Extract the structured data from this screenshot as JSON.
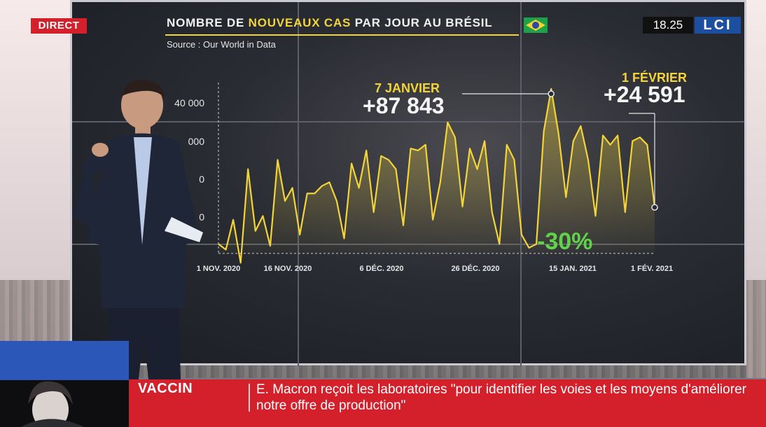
{
  "broadcast": {
    "live_label": "DIRECT",
    "time": "18.25",
    "channel_logo": "LCI",
    "colors": {
      "live_red": "#d3202b",
      "logo_blue": "#1d4fa0"
    }
  },
  "chart": {
    "title_prefix": "NOMBRE DE",
    "title_highlight": "NOUVEAUX CAS",
    "title_suffix": "PAR JOUR AU BRÉSIL",
    "source": "Source : Our World in Data",
    "flag_icon": "brazil-flag-icon",
    "annotation_peak": {
      "date": "7 JANVIER",
      "value": "+87 843"
    },
    "annotation_last": {
      "date": "1 FÉVRIER",
      "value": "+24 591"
    },
    "change": "-30%",
    "colors": {
      "line": "#f3d43a",
      "change": "#5fd34a"
    }
  },
  "chart_data": {
    "type": "area",
    "title": "NOMBRE DE NOUVEAUX CAS PAR JOUR AU BRÉSIL",
    "xlabel": "",
    "ylabel": "",
    "ylim": [
      0,
      80000
    ],
    "yticks": [
      "0",
      "",
      "",
      "40 000"
    ],
    "yticks_visible": [
      "0",
      "0",
      "000",
      "40 000"
    ],
    "xticks": [
      "1 NOV. 2020",
      "16 NOV. 2020",
      "6 DÉC. 2020",
      "26 DÉC. 2020",
      "15 JAN. 2021",
      "1 FÉV. 2021"
    ],
    "series": [
      {
        "values": [
          5000,
          2000,
          18000,
          -5000,
          45000,
          12000,
          20000,
          4000,
          50000,
          28000,
          35000,
          10000,
          32000,
          32000,
          36000,
          38000,
          28000,
          8000,
          48000,
          35000,
          55000,
          22000,
          52000,
          50000,
          45000,
          15000,
          56000,
          55000,
          58000,
          18000,
          38000,
          70000,
          62000,
          25000,
          56000,
          45000,
          60000,
          22000,
          5000,
          58000,
          50000,
          10000,
          3000,
          5000,
          65000,
          87843,
          64000,
          30000,
          60000,
          68000,
          50000,
          20000,
          63000,
          58000,
          63000,
          22000,
          60000,
          62000,
          58000,
          24591
        ]
      }
    ]
  },
  "ticker": {
    "category": "VACCIN",
    "headline": "E. Macron reçoit les laboratoires \"pour identifier les voies et les moyens d'améliorer notre offre de production\""
  }
}
